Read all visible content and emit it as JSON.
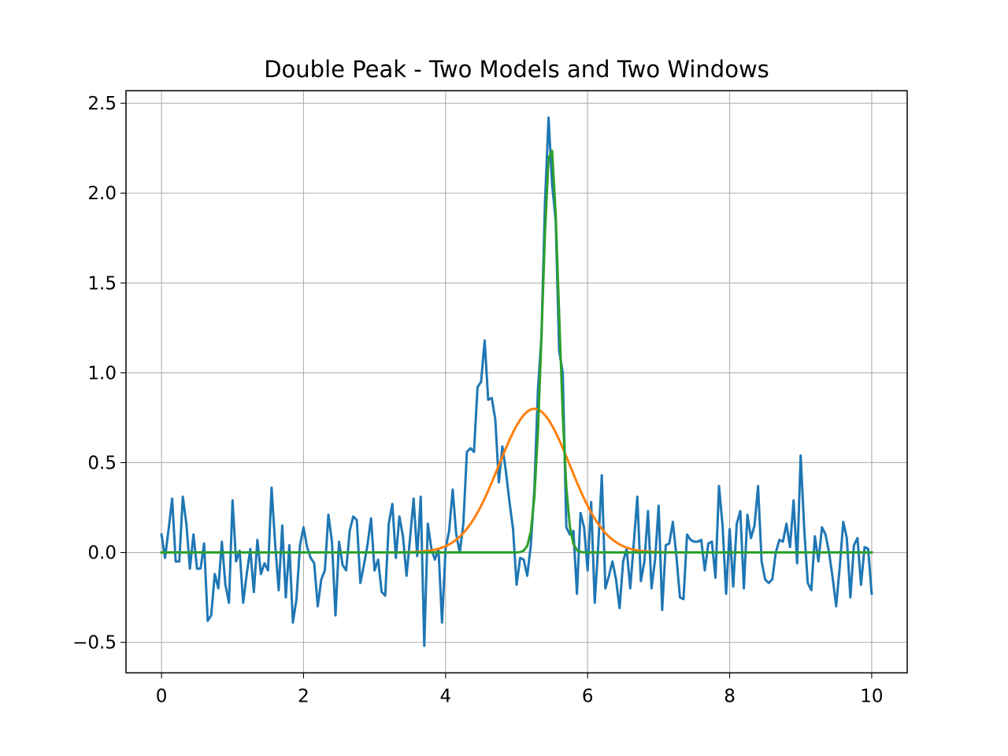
{
  "chart_data": {
    "type": "line",
    "title": "Double Peak - Two Models and Two Windows",
    "xlabel": "",
    "ylabel": "",
    "xlim": [
      -0.5,
      10.5
    ],
    "ylim": [
      -0.67,
      2.57
    ],
    "xticks": [
      0,
      2,
      4,
      6,
      8,
      10
    ],
    "xtick_labels": [
      "0",
      "2",
      "4",
      "6",
      "8",
      "10"
    ],
    "yticks": [
      -0.5,
      0.0,
      0.5,
      1.0,
      1.5,
      2.0,
      2.5
    ],
    "ytick_labels": [
      "−0.5",
      "0.0",
      "0.5",
      "1.0",
      "1.5",
      "2.0",
      "2.5"
    ],
    "grid": true,
    "legend": "none",
    "colors": {
      "data": "#1f77b4",
      "model_1": "#ff7f0e",
      "model_2": "#2ca02c",
      "grid": "#b0b0b0"
    },
    "x_range": {
      "start": 0,
      "stop": 10,
      "count": 201
    },
    "series": [
      {
        "values": [
          0.1,
          -0.03,
          0.13,
          0.3,
          -0.05,
          -0.05,
          0.31,
          0.16,
          -0.09,
          0.1,
          -0.09,
          -0.09,
          0.05,
          -0.38,
          -0.35,
          -0.12,
          -0.2,
          0.06,
          -0.18,
          -0.28,
          0.29,
          -0.05,
          0.01,
          -0.28,
          -0.12,
          0.02,
          -0.22,
          0.07,
          -0.12,
          -0.06,
          -0.1,
          0.36,
          0.05,
          -0.21,
          0.15,
          -0.25,
          0.04,
          -0.39,
          -0.26,
          0.04,
          0.14,
          0.03,
          -0.03,
          -0.06,
          -0.3,
          -0.15,
          -0.1,
          0.21,
          0.06,
          -0.35,
          0.06,
          -0.07,
          -0.1,
          0.12,
          0.2,
          0.18,
          -0.17,
          -0.07,
          0.04,
          0.19,
          -0.1,
          -0.04,
          -0.22,
          -0.24,
          0.16,
          0.27,
          -0.03,
          0.2,
          0.09,
          -0.13,
          0.08,
          0.3,
          -0.02,
          0.31,
          -0.52,
          0.16,
          0.02,
          -0.04,
          0.02,
          -0.39,
          0.02,
          0.12,
          0.35,
          0.1,
          0.0,
          0.16,
          0.56,
          0.58,
          0.56,
          0.92,
          0.95,
          1.18,
          0.85,
          0.86,
          0.74,
          0.39,
          0.59,
          0.45,
          0.28,
          0.13,
          -0.18,
          -0.03,
          -0.04,
          -0.13,
          0.04,
          0.35,
          0.9,
          1.2,
          1.95,
          2.42,
          2.05,
          1.85,
          1.12,
          1.0,
          0.14,
          0.1,
          0.12,
          -0.23,
          0.22,
          0.14,
          -0.1,
          0.28,
          -0.28,
          0.04,
          0.43,
          -0.2,
          -0.13,
          -0.05,
          -0.15,
          -0.31,
          -0.05,
          0.02,
          -0.2,
          0.05,
          0.31,
          -0.16,
          -0.05,
          0.23,
          -0.2,
          -0.04,
          0.26,
          -0.32,
          0.04,
          0.05,
          0.17,
          -0.02,
          -0.25,
          -0.26,
          0.1,
          0.07,
          0.06,
          0.06,
          0.07,
          -0.1,
          0.05,
          0.06,
          -0.14,
          0.37,
          0.15,
          -0.23,
          0.13,
          -0.19,
          0.16,
          0.23,
          -0.2,
          0.21,
          0.08,
          0.15,
          0.37,
          -0.05,
          -0.15,
          -0.17,
          -0.15,
          0.0,
          0.07,
          0.06,
          0.16,
          0.03,
          0.29,
          -0.06,
          0.54,
          0.13,
          -0.17,
          -0.21,
          0.09,
          -0.05,
          0.14,
          0.1,
          0.0,
          -0.14,
          -0.3,
          -0.08,
          0.17,
          0.08,
          -0.25,
          0.04,
          0.08,
          -0.18,
          0.03,
          0.02,
          -0.23
        ]
      },
      {
        "model": "gaussian",
        "amplitude": 0.8,
        "center": 5.25,
        "sigma": 0.5
      },
      {
        "model": "gaussian",
        "amplitude": 2.27,
        "center": 5.48,
        "sigma": 0.115
      }
    ]
  }
}
